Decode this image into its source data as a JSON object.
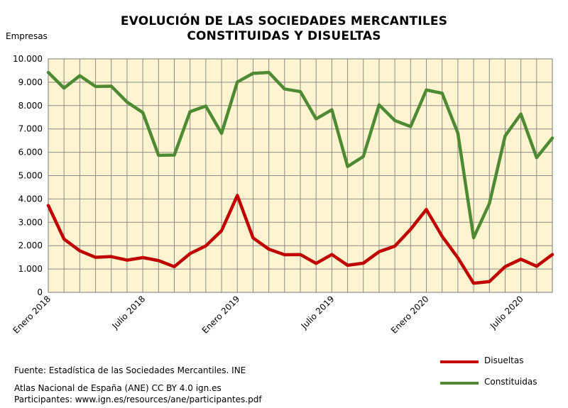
{
  "chart_data": {
    "type": "line",
    "title_line1": "EVOLUCIÓN DE LAS SOCIEDADES MERCANTILES",
    "title_line2": "CONSTITUIDAS Y DISUELTAS",
    "ylabel": "Empresas",
    "ylim": [
      0,
      10000
    ],
    "yticks": [
      0,
      1000,
      2000,
      3000,
      4000,
      5000,
      6000,
      7000,
      8000,
      9000,
      10000
    ],
    "ytick_labels": [
      "0",
      "1.000",
      "2.000",
      "3.000",
      "4.000",
      "5.000",
      "6.000",
      "7.000",
      "8.000",
      "9.000",
      "10.000"
    ],
    "x_labels": [
      {
        "index": 0,
        "text": "Enero 2018"
      },
      {
        "index": 6,
        "text": "Julio 2018"
      },
      {
        "index": 12,
        "text": "Enero 2019"
      },
      {
        "index": 18,
        "text": "Julio 2019"
      },
      {
        "index": 24,
        "text": "Enero 2020"
      },
      {
        "index": 30,
        "text": "Julio 2020"
      }
    ],
    "grid": true,
    "legend_position": "bottom-right",
    "series": [
      {
        "name": "Disueltas",
        "color": "#c00000",
        "values": [
          3720,
          2280,
          1780,
          1500,
          1530,
          1380,
          1490,
          1360,
          1100,
          1660,
          1990,
          2640,
          4150,
          2330,
          1850,
          1610,
          1620,
          1240,
          1620,
          1160,
          1250,
          1740,
          1980,
          2700,
          3550,
          2400,
          1480,
          390,
          460,
          1100,
          1420,
          1120,
          1620
        ]
      },
      {
        "name": "Constituidas",
        "color": "#4e8a34",
        "values": [
          9420,
          8750,
          9280,
          8820,
          8830,
          8150,
          7700,
          5870,
          5880,
          7740,
          7980,
          6810,
          9010,
          9380,
          9420,
          8710,
          8600,
          7430,
          7820,
          5390,
          5820,
          8030,
          7360,
          7100,
          8670,
          8530,
          6820,
          2340,
          3800,
          6700,
          7640,
          5770,
          6610
        ]
      }
    ]
  },
  "footer": {
    "source": "Fuente: Estadística de las Sociedades Mercantiles. INE",
    "license": "Atlas Nacional de España (ANE) CC BY 4.0 ign.es",
    "participants": "Participantes: www.ign.es/resources/ane/participantes.pdf"
  },
  "colors": {
    "plot_background": "#fef4cf",
    "grid": "#8c8c8c"
  }
}
